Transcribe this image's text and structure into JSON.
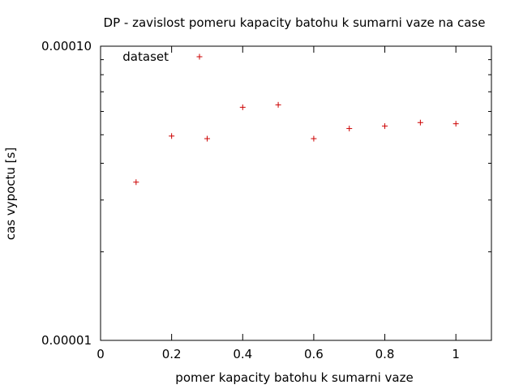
{
  "chart_data": {
    "type": "scatter",
    "title": "DP - zavislost pomeru kapacity batohu k sumarni vaze na case",
    "xlabel": "pomer kapacity batohu k sumarni vaze",
    "ylabel": "cas vypoctu [s]",
    "xlim": [
      0,
      1.1
    ],
    "ylim": [
      1e-05,
      0.0001
    ],
    "yscale": "log",
    "grid": false,
    "legend_position": "top-left",
    "x_ticks": [
      {
        "value": 0,
        "label": "0"
      },
      {
        "value": 0.2,
        "label": "0.2"
      },
      {
        "value": 0.4,
        "label": "0.4"
      },
      {
        "value": 0.6,
        "label": "0.6"
      },
      {
        "value": 0.8,
        "label": "0.8"
      },
      {
        "value": 1,
        "label": "1"
      }
    ],
    "y_ticks": [
      {
        "value": 1e-05,
        "label": "0.00001"
      },
      {
        "value": 0.0001,
        "label": "0.00010"
      }
    ],
    "series": [
      {
        "name": "dataset",
        "color": "#cc0000",
        "marker": "plus",
        "points": [
          {
            "x": 0.1,
            "y": 3.45e-05
          },
          {
            "x": 0.2,
            "y": 4.95e-05
          },
          {
            "x": 0.3,
            "y": 4.85e-05
          },
          {
            "x": 0.4,
            "y": 6.2e-05
          },
          {
            "x": 0.5,
            "y": 6.32e-05
          },
          {
            "x": 0.6,
            "y": 4.85e-05
          },
          {
            "x": 0.7,
            "y": 5.25e-05
          },
          {
            "x": 0.8,
            "y": 5.35e-05
          },
          {
            "x": 0.9,
            "y": 5.5e-05
          },
          {
            "x": 1.0,
            "y": 5.45e-05
          }
        ]
      }
    ]
  }
}
